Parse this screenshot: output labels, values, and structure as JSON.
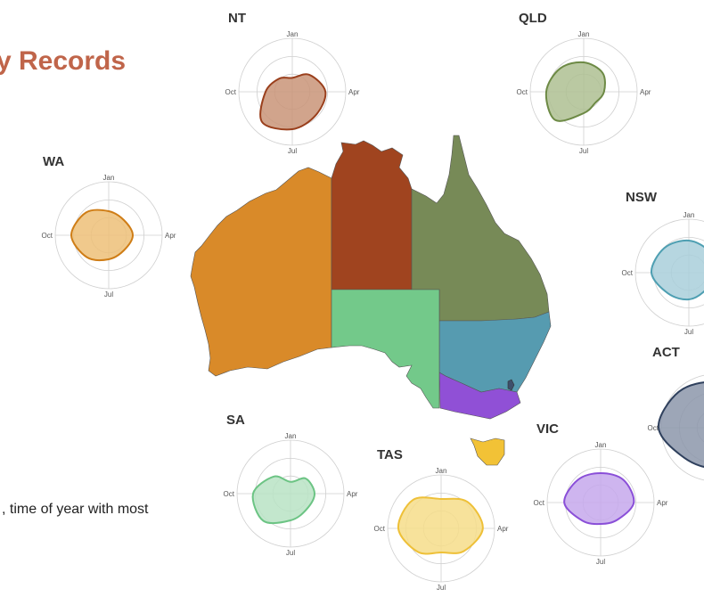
{
  "title": "y Records",
  "subtitle": ", time of year with most",
  "months": {
    "jan": "Jan",
    "apr": "Apr",
    "jul": "Jul",
    "oct": "Oct"
  },
  "states": [
    {
      "id": "wa",
      "name": "WA",
      "color": "#d98a29",
      "stroke": "#cf7d16",
      "fill": "#edbf78"
    },
    {
      "id": "nt",
      "name": "NT",
      "color": "#a0441f",
      "stroke": "#9a3f1c",
      "fill": "#c99478"
    },
    {
      "id": "qld",
      "name": "QLD",
      "color": "#778a57",
      "stroke": "#6d8a45",
      "fill": "#aebf92"
    },
    {
      "id": "nsw",
      "name": "NSW",
      "color": "#569bb0",
      "stroke": "#4e9fb2",
      "fill": "#a9cfdb"
    },
    {
      "id": "act",
      "name": "ACT",
      "color": "#3e4f6b",
      "stroke": "#2f405d",
      "fill": "#8c97aa"
    },
    {
      "id": "vic",
      "name": "VIC",
      "color": "#9050d6",
      "stroke": "#8a4fd8",
      "fill": "#c5a8ec"
    },
    {
      "id": "sa",
      "name": "SA",
      "color": "#73c98a",
      "stroke": "#6cc484",
      "fill": "#b9e3c4"
    },
    {
      "id": "tas",
      "name": "TAS",
      "color": "#f2c236",
      "stroke": "#eec038",
      "fill": "#f6dd8a"
    }
  ]
}
